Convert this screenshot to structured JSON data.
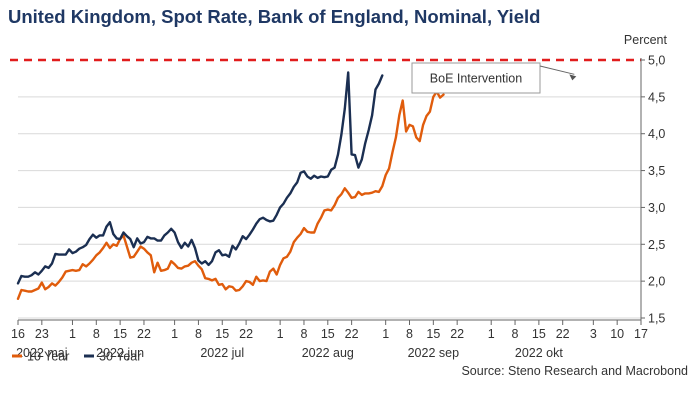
{
  "title": "United Kingdom, Spot Rate, Bank of England, Nominal, Yield",
  "source": "Source: Steno Research and Macrobond",
  "chart_data": {
    "type": "line",
    "title": "United Kingdom, Spot Rate, Bank of England, Nominal, Yield",
    "ylabel": "Percent",
    "ylim": [
      1.5,
      5.0
    ],
    "yticks": [
      "1,5",
      "2,0",
      "2,5",
      "3,0",
      "3,5",
      "4,0",
      "4,5",
      "5,0"
    ],
    "grid": true,
    "legend_position": "bottom-left",
    "x_day_ticks": [
      {
        "day": 0,
        "label": "16"
      },
      {
        "day": 7,
        "label": "23"
      },
      {
        "day": 16,
        "label": "1"
      },
      {
        "day": 23,
        "label": "8"
      },
      {
        "day": 30,
        "label": "15"
      },
      {
        "day": 37,
        "label": "22"
      },
      {
        "day": 46,
        "label": "1"
      },
      {
        "day": 53,
        "label": "8"
      },
      {
        "day": 60,
        "label": "15"
      },
      {
        "day": 67,
        "label": "22"
      },
      {
        "day": 77,
        "label": "1"
      },
      {
        "day": 84,
        "label": "8"
      },
      {
        "day": 91,
        "label": "15"
      },
      {
        "day": 98,
        "label": "22"
      },
      {
        "day": 108,
        "label": "1"
      },
      {
        "day": 115,
        "label": "8"
      },
      {
        "day": 122,
        "label": "15"
      },
      {
        "day": 129,
        "label": "22"
      },
      {
        "day": 139,
        "label": "1"
      },
      {
        "day": 146,
        "label": "8"
      },
      {
        "day": 153,
        "label": "15"
      },
      {
        "day": 160,
        "label": "22"
      },
      {
        "day": 169,
        "label": "3"
      },
      {
        "day": 176,
        "label": "10"
      },
      {
        "day": 183,
        "label": "17"
      }
    ],
    "x_month_labels": [
      {
        "day": 7,
        "label": "2022 maj"
      },
      {
        "day": 30,
        "label": "2022 jun"
      },
      {
        "day": 60,
        "label": "2022 jul"
      },
      {
        "day": 91,
        "label": "2022 aug"
      },
      {
        "day": 122,
        "label": "2022 sep"
      },
      {
        "day": 153,
        "label": "2022 okt"
      }
    ],
    "reference_line": {
      "value": 5.0,
      "color": "#e11d1d",
      "style": "dashed"
    },
    "annotation": {
      "text": "BoE Intervention",
      "target_day": 164,
      "target_value": 4.86
    },
    "series": [
      {
        "name": "10 Year",
        "color": "#e05c0c",
        "points": [
          [
            0,
            1.76
          ],
          [
            1,
            1.88
          ],
          [
            2,
            1.87
          ],
          [
            3,
            1.86
          ],
          [
            4,
            1.86
          ],
          [
            5,
            1.88
          ],
          [
            6,
            1.9
          ],
          [
            7,
            1.98
          ],
          [
            8,
            1.89
          ],
          [
            9,
            1.92
          ],
          [
            10,
            1.97
          ],
          [
            11,
            1.94
          ],
          [
            12,
            1.99
          ],
          [
            13,
            2.05
          ],
          [
            14,
            2.13
          ],
          [
            15,
            2.14
          ],
          [
            16,
            2.15
          ],
          [
            17,
            2.14
          ],
          [
            18,
            2.15
          ],
          [
            19,
            2.23
          ],
          [
            20,
            2.2
          ],
          [
            21,
            2.24
          ],
          [
            22,
            2.29
          ],
          [
            23,
            2.35
          ],
          [
            24,
            2.39
          ],
          [
            25,
            2.45
          ],
          [
            26,
            2.52
          ],
          [
            27,
            2.45
          ],
          [
            28,
            2.5
          ],
          [
            29,
            2.48
          ],
          [
            30,
            2.57
          ],
          [
            31,
            2.62
          ],
          [
            32,
            2.47
          ],
          [
            33,
            2.32
          ],
          [
            34,
            2.33
          ],
          [
            35,
            2.4
          ],
          [
            36,
            2.47
          ],
          [
            37,
            2.44
          ],
          [
            38,
            2.39
          ],
          [
            39,
            2.35
          ],
          [
            40,
            2.12
          ],
          [
            41,
            2.25
          ],
          [
            42,
            2.14
          ],
          [
            43,
            2.15
          ],
          [
            44,
            2.17
          ],
          [
            45,
            2.27
          ],
          [
            46,
            2.23
          ],
          [
            47,
            2.18
          ],
          [
            48,
            2.17
          ],
          [
            49,
            2.2
          ],
          [
            50,
            2.21
          ],
          [
            51,
            2.25
          ],
          [
            52,
            2.27
          ],
          [
            53,
            2.21
          ],
          [
            54,
            2.16
          ],
          [
            55,
            2.04
          ],
          [
            56,
            2.03
          ],
          [
            57,
            2.01
          ],
          [
            58,
            2.03
          ],
          [
            59,
            1.95
          ],
          [
            60,
            1.96
          ],
          [
            61,
            1.89
          ],
          [
            62,
            1.93
          ],
          [
            63,
            1.92
          ],
          [
            64,
            1.87
          ],
          [
            65,
            1.88
          ],
          [
            66,
            1.93
          ],
          [
            67,
            2.0
          ],
          [
            68,
            1.99
          ],
          [
            69,
            1.95
          ],
          [
            70,
            2.06
          ],
          [
            71,
            2.0
          ],
          [
            72,
            2.01
          ],
          [
            73,
            2.0
          ],
          [
            74,
            2.13
          ],
          [
            75,
            2.17
          ],
          [
            76,
            2.09
          ],
          [
            77,
            2.22
          ],
          [
            78,
            2.31
          ],
          [
            79,
            2.33
          ],
          [
            80,
            2.4
          ],
          [
            81,
            2.53
          ],
          [
            82,
            2.59
          ],
          [
            83,
            2.64
          ],
          [
            84,
            2.72
          ],
          [
            85,
            2.67
          ],
          [
            86,
            2.66
          ],
          [
            87,
            2.66
          ],
          [
            88,
            2.78
          ],
          [
            89,
            2.86
          ],
          [
            90,
            2.96
          ],
          [
            91,
            2.97
          ],
          [
            92,
            2.96
          ],
          [
            93,
            3.03
          ],
          [
            94,
            3.13
          ],
          [
            95,
            3.18
          ],
          [
            96,
            3.26
          ],
          [
            97,
            3.2
          ],
          [
            98,
            3.13
          ],
          [
            99,
            3.14
          ],
          [
            100,
            3.21
          ],
          [
            101,
            3.17
          ],
          [
            102,
            3.19
          ],
          [
            103,
            3.19
          ],
          [
            104,
            3.2
          ],
          [
            105,
            3.22
          ],
          [
            106,
            3.21
          ],
          [
            107,
            3.29
          ],
          [
            108,
            3.44
          ],
          [
            109,
            3.53
          ],
          [
            110,
            3.75
          ],
          [
            111,
            3.95
          ],
          [
            112,
            4.25
          ],
          [
            113,
            4.45
          ],
          [
            114,
            4.03
          ],
          [
            115,
            4.12
          ],
          [
            116,
            4.1
          ],
          [
            117,
            3.95
          ],
          [
            118,
            3.9
          ],
          [
            119,
            4.12
          ],
          [
            120,
            4.24
          ],
          [
            121,
            4.3
          ],
          [
            122,
            4.5
          ],
          [
            123,
            4.57
          ],
          [
            124,
            4.49
          ],
          [
            125,
            4.53
          ]
        ]
      },
      {
        "name": "30 Year",
        "color": "#1b2f52",
        "points": [
          [
            0,
            1.97
          ],
          [
            1,
            2.07
          ],
          [
            2,
            2.06
          ],
          [
            3,
            2.06
          ],
          [
            4,
            2.08
          ],
          [
            5,
            2.12
          ],
          [
            6,
            2.09
          ],
          [
            7,
            2.14
          ],
          [
            8,
            2.2
          ],
          [
            9,
            2.18
          ],
          [
            10,
            2.24
          ],
          [
            11,
            2.37
          ],
          [
            12,
            2.36
          ],
          [
            13,
            2.36
          ],
          [
            14,
            2.36
          ],
          [
            15,
            2.43
          ],
          [
            16,
            2.38
          ],
          [
            17,
            2.4
          ],
          [
            18,
            2.44
          ],
          [
            19,
            2.46
          ],
          [
            20,
            2.49
          ],
          [
            21,
            2.57
          ],
          [
            22,
            2.63
          ],
          [
            23,
            2.59
          ],
          [
            24,
            2.62
          ],
          [
            25,
            2.62
          ],
          [
            26,
            2.74
          ],
          [
            27,
            2.8
          ],
          [
            28,
            2.64
          ],
          [
            29,
            2.58
          ],
          [
            30,
            2.57
          ],
          [
            31,
            2.66
          ],
          [
            32,
            2.61
          ],
          [
            33,
            2.57
          ],
          [
            34,
            2.46
          ],
          [
            35,
            2.58
          ],
          [
            36,
            2.51
          ],
          [
            37,
            2.53
          ],
          [
            38,
            2.6
          ],
          [
            39,
            2.58
          ],
          [
            40,
            2.58
          ],
          [
            41,
            2.55
          ],
          [
            42,
            2.55
          ],
          [
            43,
            2.62
          ],
          [
            44,
            2.66
          ],
          [
            45,
            2.71
          ],
          [
            46,
            2.66
          ],
          [
            47,
            2.53
          ],
          [
            48,
            2.45
          ],
          [
            49,
            2.52
          ],
          [
            50,
            2.47
          ],
          [
            51,
            2.56
          ],
          [
            52,
            2.45
          ],
          [
            53,
            2.28
          ],
          [
            54,
            2.24
          ],
          [
            55,
            2.27
          ],
          [
            56,
            2.22
          ],
          [
            57,
            2.27
          ],
          [
            58,
            2.39
          ],
          [
            59,
            2.42
          ],
          [
            60,
            2.35
          ],
          [
            61,
            2.36
          ],
          [
            62,
            2.33
          ],
          [
            63,
            2.48
          ],
          [
            64,
            2.43
          ],
          [
            65,
            2.51
          ],
          [
            66,
            2.61
          ],
          [
            67,
            2.57
          ],
          [
            68,
            2.63
          ],
          [
            69,
            2.7
          ],
          [
            70,
            2.78
          ],
          [
            71,
            2.84
          ],
          [
            72,
            2.86
          ],
          [
            73,
            2.83
          ],
          [
            74,
            2.81
          ],
          [
            75,
            2.82
          ],
          [
            76,
            2.9
          ],
          [
            77,
            3.0
          ],
          [
            78,
            3.05
          ],
          [
            79,
            3.13
          ],
          [
            80,
            3.19
          ],
          [
            81,
            3.28
          ],
          [
            82,
            3.34
          ],
          [
            83,
            3.47
          ],
          [
            84,
            3.49
          ],
          [
            85,
            3.42
          ],
          [
            86,
            3.39
          ],
          [
            87,
            3.43
          ],
          [
            88,
            3.4
          ],
          [
            89,
            3.42
          ],
          [
            90,
            3.41
          ],
          [
            91,
            3.42
          ],
          [
            92,
            3.51
          ],
          [
            93,
            3.54
          ],
          [
            94,
            3.72
          ],
          [
            95,
            3.99
          ],
          [
            96,
            4.34
          ],
          [
            97,
            4.83
          ],
          [
            98,
            3.72
          ],
          [
            99,
            3.71
          ],
          [
            100,
            3.54
          ],
          [
            101,
            3.65
          ],
          [
            102,
            3.87
          ],
          [
            103,
            4.05
          ],
          [
            104,
            4.25
          ],
          [
            105,
            4.6
          ],
          [
            106,
            4.68
          ],
          [
            107,
            4.79
          ]
        ]
      }
    ]
  }
}
